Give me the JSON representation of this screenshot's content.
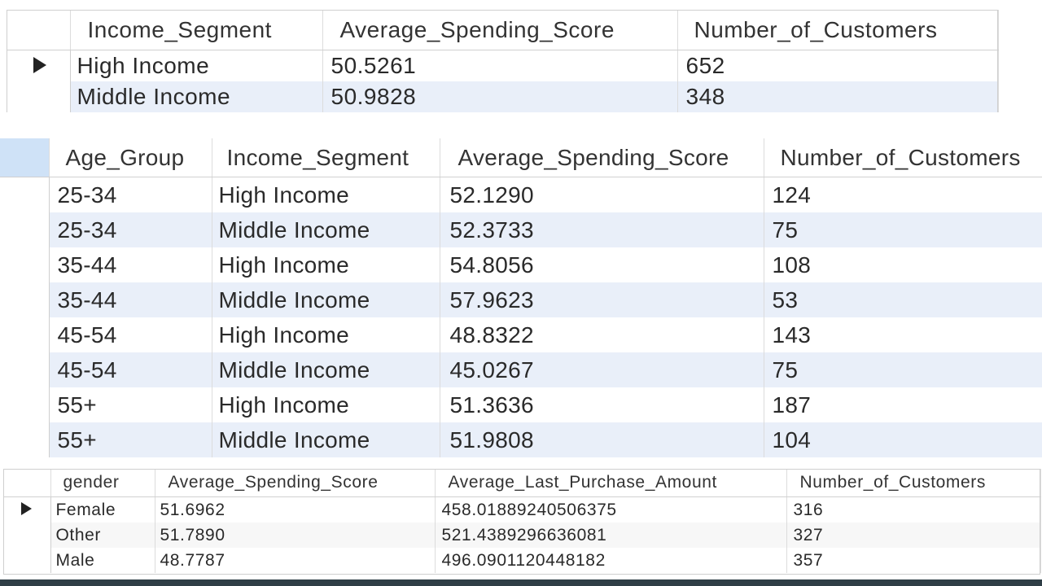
{
  "grid1": {
    "columns": [
      "Income_Segment",
      "Average_Spending_Score",
      "Number_of_Customers"
    ],
    "rows": [
      [
        "High Income",
        "50.5261",
        "652"
      ],
      [
        "Middle Income",
        "50.9828",
        "348"
      ]
    ]
  },
  "grid2": {
    "columns": [
      "Age_Group",
      "Income_Segment",
      "Average_Spending_Score",
      "Number_of_Customers"
    ],
    "rows": [
      [
        "25-34",
        "High Income",
        "52.1290",
        "124"
      ],
      [
        "25-34",
        "Middle Income",
        "52.3733",
        "75"
      ],
      [
        "35-44",
        "High Income",
        "54.8056",
        "108"
      ],
      [
        "35-44",
        "Middle Income",
        "57.9623",
        "53"
      ],
      [
        "45-54",
        "High Income",
        "48.8322",
        "143"
      ],
      [
        "45-54",
        "Middle Income",
        "45.0267",
        "75"
      ],
      [
        "55+",
        "High Income",
        "51.3636",
        "187"
      ],
      [
        "55+",
        "Middle Income",
        "51.9808",
        "104"
      ]
    ]
  },
  "grid3": {
    "columns": [
      "gender",
      "Average_Spending_Score",
      "Average_Last_Purchase_Amount",
      "Number_of_Customers"
    ],
    "rows": [
      [
        "Female",
        "51.6962",
        "458.01889240506375",
        "316"
      ],
      [
        "Other",
        "51.7890",
        "521.4389296636081",
        "327"
      ],
      [
        "Male",
        "48.7787",
        "496.0901120448182",
        "357"
      ]
    ]
  },
  "icons": {
    "row_indicator": "current-row-triangle-icon"
  }
}
